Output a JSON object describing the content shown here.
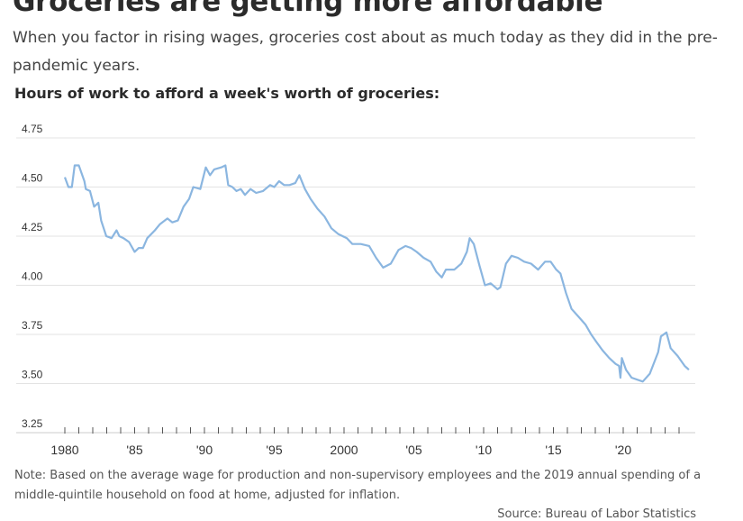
{
  "header": {
    "title": "Groceries are getting more affordable",
    "subtitle": "When you factor in rising wages, groceries cost about as much today as they did in the pre-pandemic years."
  },
  "footer": {
    "note": "Note: Based on the average wage for production and non-supervisory employees and the 2019 annual spending of a middle-quintile household on food at home, adjusted for inflation.",
    "source": "Source: Bureau of Labor Statistics"
  },
  "chart_data": {
    "type": "line",
    "title": "Hours of work to afford a week's worth of groceries:",
    "xlabel": "",
    "ylabel": "",
    "ylim": [
      3.25,
      4.75
    ],
    "xlim": [
      1980,
      2025
    ],
    "grid": true,
    "line_color": "#8bb6e0",
    "y_ticks": [
      "4.75",
      "4.50",
      "4.25",
      "4.00",
      "3.75",
      "3.50",
      "3.25"
    ],
    "x_ticks": [
      {
        "year": 1980,
        "label": "1980"
      },
      {
        "year": 1985,
        "label": "'85"
      },
      {
        "year": 1990,
        "label": "'90"
      },
      {
        "year": 1995,
        "label": "'95"
      },
      {
        "year": 2000,
        "label": "2000"
      },
      {
        "year": 2005,
        "label": "'05"
      },
      {
        "year": 2010,
        "label": "'10"
      },
      {
        "year": 2015,
        "label": "'15"
      },
      {
        "year": 2020,
        "label": "'20"
      }
    ],
    "x": [
      1980.0,
      1980.26,
      1980.5,
      1980.7,
      1981.0,
      1981.4,
      1981.5,
      1981.8,
      1982.1,
      1982.4,
      1982.6,
      1982.97,
      1983.35,
      1983.7,
      1983.9,
      1984.2,
      1984.6,
      1985.0,
      1985.3,
      1985.6,
      1985.9,
      1986.45,
      1986.8,
      1987.35,
      1987.7,
      1988.1,
      1988.5,
      1988.9,
      1989.2,
      1989.7,
      1990.1,
      1990.4,
      1990.7,
      1991.2,
      1991.5,
      1991.7,
      1992.0,
      1992.3,
      1992.6,
      1992.9,
      1993.3,
      1993.7,
      1994.2,
      1994.7,
      1995.0,
      1995.35,
      1995.7,
      1996.1,
      1996.5,
      1996.8,
      1997.2,
      1997.6,
      1998.1,
      1998.6,
      1999.1,
      1999.6,
      2000.2,
      2000.6,
      2001.2,
      2001.8,
      2002.3,
      2002.8,
      2003.35,
      2003.9,
      2004.4,
      2004.8,
      2005.2,
      2005.7,
      2006.2,
      2006.6,
      2007.0,
      2007.3,
      2007.9,
      2008.4,
      2008.8,
      2009.0,
      2009.3,
      2009.7,
      2010.1,
      2010.5,
      2011.0,
      2011.2,
      2011.6,
      2012.0,
      2012.45,
      2012.9,
      2013.4,
      2013.9,
      2014.4,
      2014.8,
      2015.2,
      2015.5,
      2015.9,
      2016.3,
      2016.8,
      2017.3,
      2017.7,
      2018.1,
      2018.5,
      2019.0,
      2019.45,
      2019.7,
      2019.8,
      2019.9,
      2020.2,
      2020.6,
      2021.4,
      2021.9,
      2022.5,
      2022.7,
      2023.1,
      2023.4,
      2023.9,
      2024.4,
      2024.7
    ],
    "values": [
      4.55,
      4.5,
      4.5,
      4.61,
      4.61,
      4.53,
      4.49,
      4.48,
      4.4,
      4.42,
      4.33,
      4.25,
      4.24,
      4.28,
      4.25,
      4.24,
      4.22,
      4.17,
      4.19,
      4.19,
      4.24,
      4.28,
      4.31,
      4.34,
      4.32,
      4.33,
      4.4,
      4.44,
      4.5,
      4.49,
      4.6,
      4.56,
      4.59,
      4.6,
      4.61,
      4.51,
      4.5,
      4.48,
      4.49,
      4.46,
      4.49,
      4.47,
      4.48,
      4.51,
      4.5,
      4.53,
      4.51,
      4.51,
      4.52,
      4.56,
      4.49,
      4.44,
      4.39,
      4.35,
      4.29,
      4.26,
      4.24,
      4.21,
      4.21,
      4.2,
      4.14,
      4.09,
      4.11,
      4.18,
      4.2,
      4.19,
      4.17,
      4.14,
      4.12,
      4.07,
      4.04,
      4.08,
      4.08,
      4.11,
      4.17,
      4.24,
      4.21,
      4.1,
      4.0,
      4.01,
      3.98,
      3.99,
      4.11,
      4.15,
      4.14,
      4.12,
      4.11,
      4.08,
      4.12,
      4.12,
      4.08,
      4.06,
      3.96,
      3.88,
      3.84,
      3.8,
      3.75,
      3.71,
      3.67,
      3.63,
      3.6,
      3.59,
      3.53,
      3.63,
      3.57,
      3.53,
      3.51,
      3.55,
      3.66,
      3.74,
      3.76,
      3.68,
      3.64,
      3.59,
      3.57
    ]
  }
}
